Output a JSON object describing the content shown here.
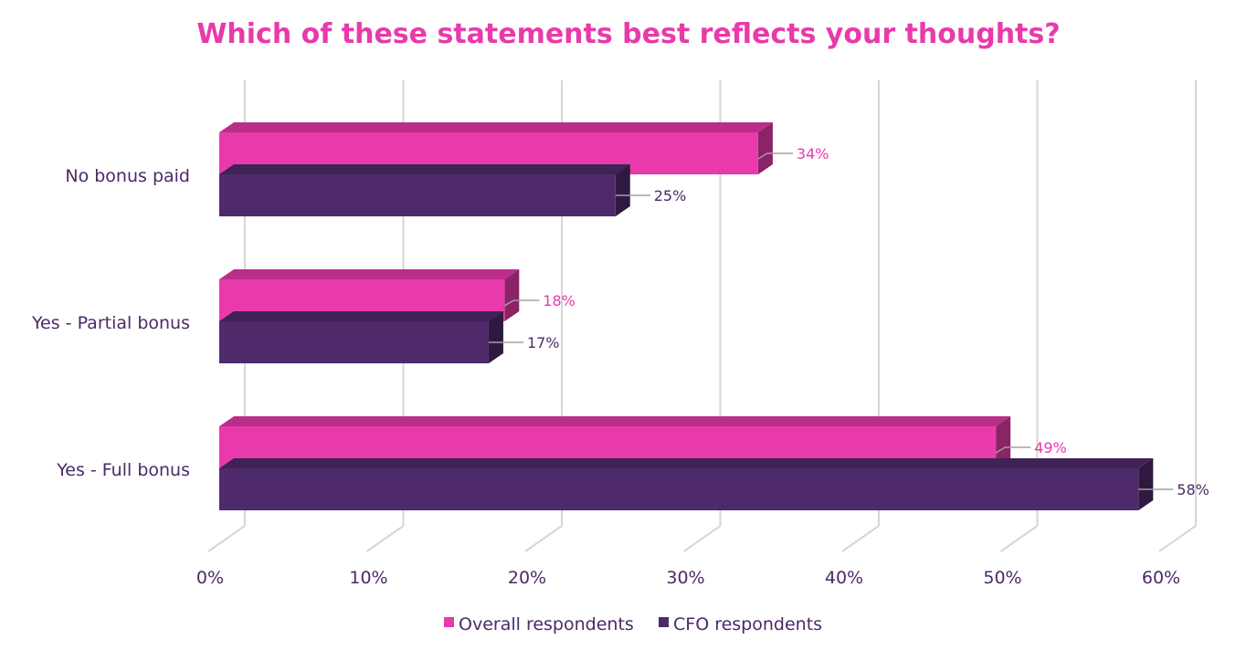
{
  "chart_data": {
    "type": "bar",
    "orientation": "horizontal",
    "title": "Which of these statements best reflects your thoughts?",
    "categories": [
      "No bonus paid",
      "Yes - Partial bonus",
      "Yes - Full bonus"
    ],
    "series": [
      {
        "name": "Overall respondents",
        "values": [
          34,
          18,
          49
        ],
        "labels": [
          "34%",
          "18%",
          "49%"
        ],
        "color": "#e83aab"
      },
      {
        "name": "CFO respondents",
        "values": [
          25,
          17,
          58
        ],
        "labels": [
          "25%",
          "17%",
          "58%"
        ],
        "color": "#4f2a6b"
      }
    ],
    "xticks": [
      "0%",
      "10%",
      "20%",
      "30%",
      "40%",
      "50%",
      "60%"
    ],
    "xlim": [
      0,
      60
    ],
    "grid": true,
    "legend_position": "bottom",
    "style": "3d"
  },
  "colors": {
    "title": "#e83aab",
    "text": "#4a2a68",
    "grid": "#d6d6d6"
  }
}
